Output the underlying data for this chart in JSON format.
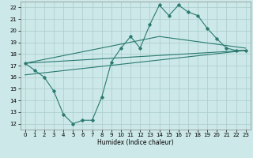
{
  "xlabel": "Humidex (Indice chaleur)",
  "xlim": [
    -0.5,
    23.5
  ],
  "ylim": [
    11.5,
    22.5
  ],
  "yticks": [
    12,
    13,
    14,
    15,
    16,
    17,
    18,
    19,
    20,
    21,
    22
  ],
  "xticks": [
    0,
    1,
    2,
    3,
    4,
    5,
    6,
    7,
    8,
    9,
    10,
    11,
    12,
    13,
    14,
    15,
    16,
    17,
    18,
    19,
    20,
    21,
    22,
    23
  ],
  "background_color": "#cce8e8",
  "grid_color": "#aacccc",
  "line_color": "#2a7a70",
  "series1_x": [
    0,
    1,
    2,
    3,
    4,
    5,
    6,
    7,
    8,
    9,
    10,
    11,
    12,
    13,
    14,
    15,
    16,
    17,
    18,
    19,
    20,
    21,
    22,
    23
  ],
  "series1_y": [
    17.2,
    16.6,
    16.0,
    14.8,
    12.8,
    12.0,
    12.3,
    12.3,
    14.3,
    17.3,
    18.5,
    19.5,
    18.5,
    20.5,
    22.2,
    21.3,
    22.2,
    21.6,
    21.3,
    20.2,
    19.3,
    18.5,
    18.3,
    18.3
  ],
  "line1_x": [
    0,
    23
  ],
  "line1_y": [
    17.2,
    18.3
  ],
  "line2_x": [
    0,
    23
  ],
  "line2_y": [
    16.2,
    18.3
  ],
  "line3_x": [
    0,
    14,
    23
  ],
  "line3_y": [
    17.2,
    19.5,
    18.5
  ]
}
